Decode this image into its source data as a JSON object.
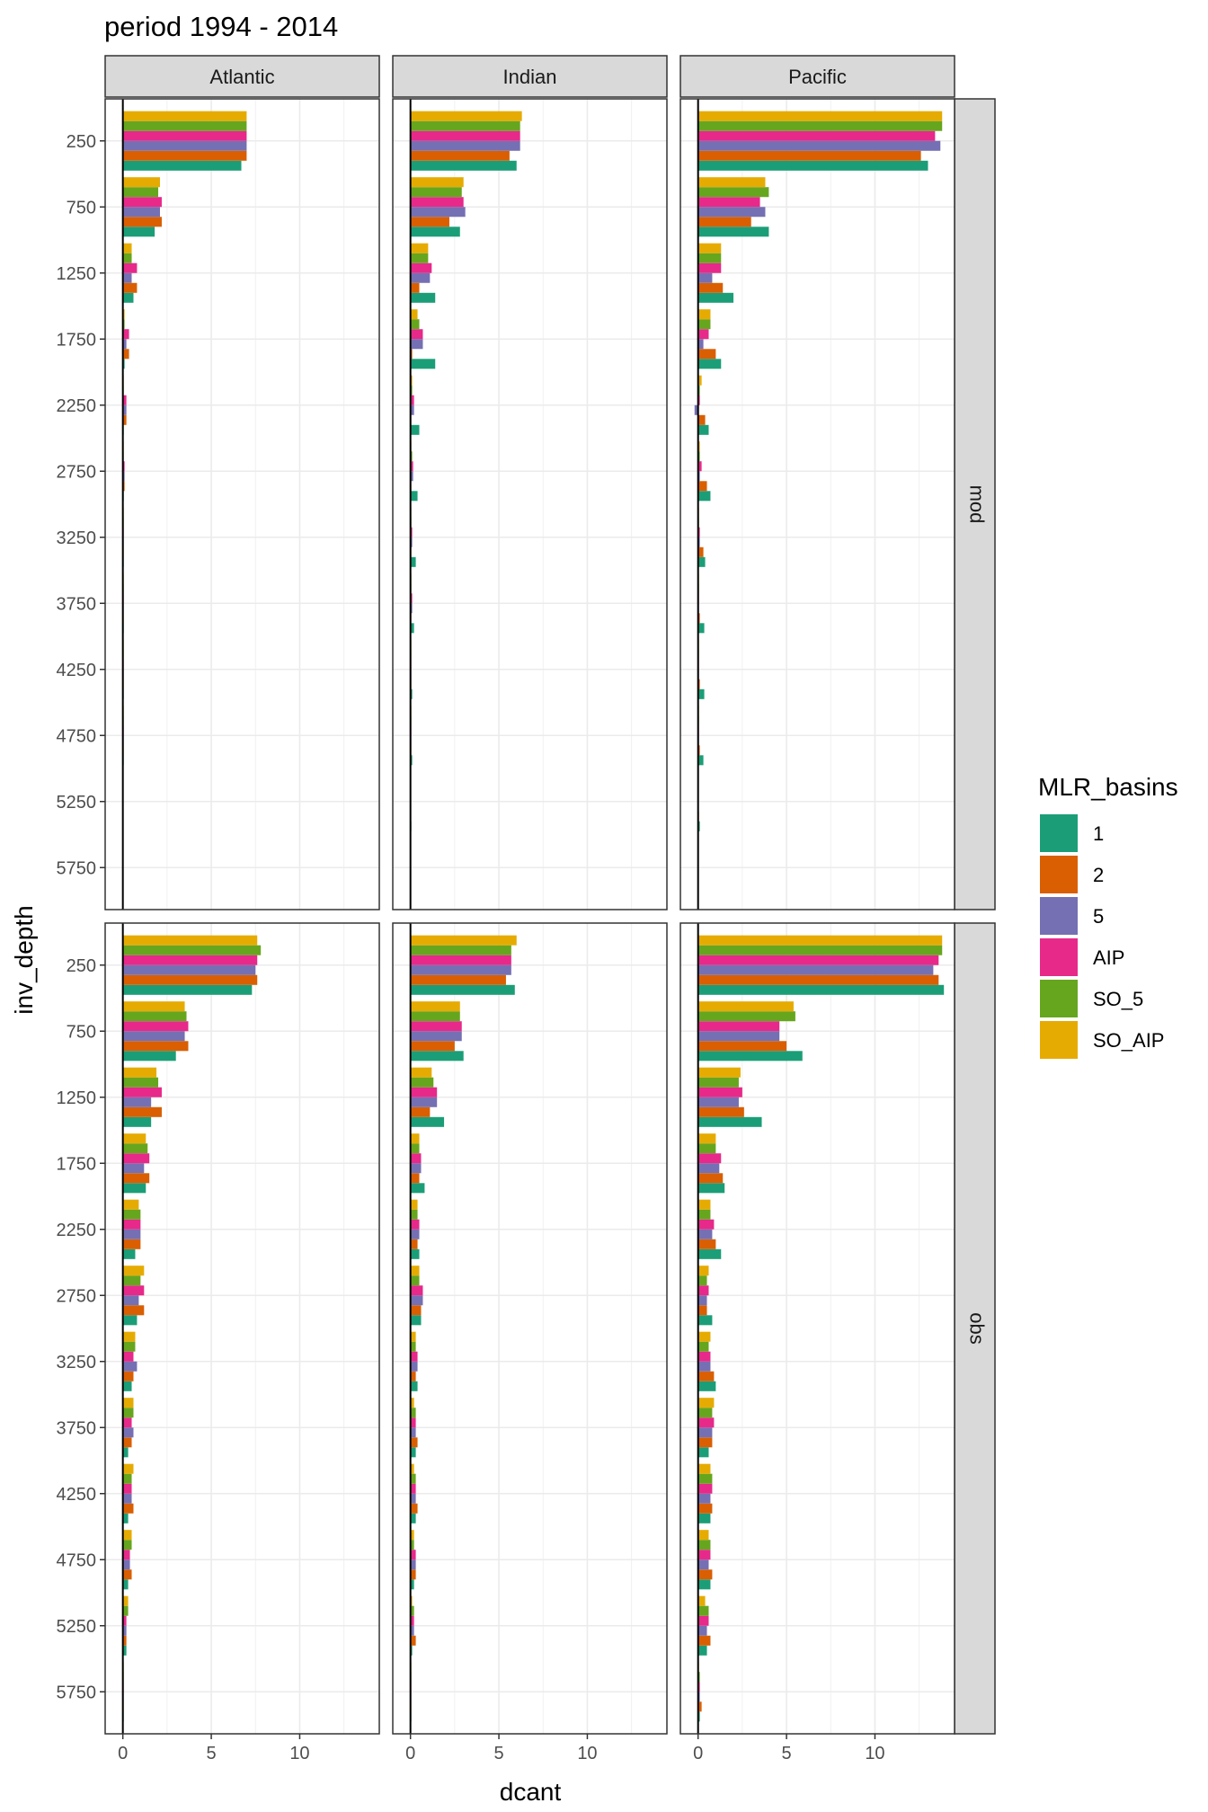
{
  "chart_data": {
    "type": "bar",
    "orientation": "horizontal",
    "title": "period 1994 - 2014",
    "xlabel": "dcant",
    "ylabel": "inv_depth",
    "xlim": [
      -1,
      14.5
    ],
    "x_ticks": [
      0,
      5,
      10
    ],
    "y_ticks": [
      250,
      750,
      1250,
      1750,
      2250,
      2750,
      3250,
      3750,
      4250,
      4750,
      5250,
      5750
    ],
    "facet_cols": [
      "Atlantic",
      "Indian",
      "Pacific"
    ],
    "facet_rows": [
      "mod",
      "obs"
    ],
    "legend_title": "MLR_basins",
    "legend_position": "right",
    "grid": true,
    "series": [
      {
        "name": "1",
        "color": "#1b9e77"
      },
      {
        "name": "2",
        "color": "#d95f02"
      },
      {
        "name": "5",
        "color": "#7570b3"
      },
      {
        "name": "AIP",
        "color": "#e7298a"
      },
      {
        "name": "SO_5",
        "color": "#66a61e"
      },
      {
        "name": "SO_AIP",
        "color": "#e6ab02"
      }
    ],
    "panels": [
      {
        "basin": "Atlantic",
        "data_source": "mod",
        "values": [
          [
            6.7,
            7.0,
            7.0,
            7.0,
            7.0,
            7.0
          ],
          [
            1.8,
            2.2,
            2.1,
            2.2,
            2.0,
            2.1
          ],
          [
            0.6,
            0.8,
            0.5,
            0.8,
            0.5,
            0.5
          ],
          [
            0.1,
            0.35,
            0.2,
            0.35,
            0.1,
            0.1
          ],
          [
            0.05,
            0.2,
            0.2,
            0.2,
            0.05,
            0.05
          ],
          [
            0.05,
            0.1,
            0.1,
            0.1,
            0.05,
            0.05
          ],
          [
            0.05,
            0.05,
            0.05,
            0.05,
            0.05,
            0.05
          ],
          [
            0.05,
            0.05,
            0.05,
            0.05,
            0.05,
            0.05
          ],
          [
            0.05,
            0.05,
            0.05,
            0.05,
            0.05,
            0.05
          ],
          [
            0.05,
            0.05,
            0.05,
            0.05,
            0.05,
            0.05
          ],
          [
            0.02,
            0.02,
            0.02,
            0.02,
            0.02,
            0.02
          ],
          [
            0.0,
            0.0,
            0.0,
            0.0,
            0.0,
            0.0
          ]
        ]
      },
      {
        "basin": "Indian",
        "data_source": "mod",
        "values": [
          [
            6.0,
            5.6,
            6.2,
            6.2,
            6.2,
            6.3
          ],
          [
            2.8,
            2.2,
            3.1,
            3.0,
            2.9,
            3.0
          ],
          [
            1.4,
            0.5,
            1.1,
            1.2,
            1.0,
            1.0
          ],
          [
            1.4,
            0.1,
            0.7,
            0.7,
            0.5,
            0.4
          ],
          [
            0.5,
            0.05,
            0.2,
            0.2,
            0.1,
            0.1
          ],
          [
            0.4,
            0.05,
            0.15,
            0.15,
            0.1,
            0.05
          ],
          [
            0.3,
            0.05,
            0.1,
            0.1,
            0.05,
            0.05
          ],
          [
            0.2,
            0.05,
            0.1,
            0.1,
            0.05,
            0.05
          ],
          [
            0.1,
            0.05,
            0.05,
            0.05,
            0.05,
            0.05
          ],
          [
            0.1,
            0.05,
            0.05,
            0.05,
            0.05,
            0.05
          ],
          [
            0.05,
            0.02,
            0.02,
            0.02,
            0.02,
            0.02
          ],
          [
            0.0,
            0.0,
            0.0,
            0.0,
            0.0,
            0.0
          ]
        ]
      },
      {
        "basin": "Pacific",
        "data_source": "mod",
        "values": [
          [
            13.0,
            12.6,
            13.7,
            13.4,
            13.8,
            13.8
          ],
          [
            4.0,
            3.0,
            3.8,
            3.5,
            4.0,
            3.8
          ],
          [
            2.0,
            1.4,
            0.8,
            1.3,
            1.3,
            1.3
          ],
          [
            1.3,
            1.0,
            0.3,
            0.6,
            0.7,
            0.7
          ],
          [
            0.6,
            0.4,
            -0.2,
            0.1,
            0.1,
            0.2
          ],
          [
            0.7,
            0.5,
            0.1,
            0.2,
            0.1,
            0.1
          ],
          [
            0.4,
            0.3,
            0.1,
            0.1,
            0.05,
            0.05
          ],
          [
            0.35,
            0.1,
            0.05,
            0.05,
            0.05,
            0.05
          ],
          [
            0.35,
            0.1,
            0.05,
            0.05,
            0.05,
            0.05
          ],
          [
            0.3,
            0.1,
            0.05,
            0.05,
            0.05,
            0.05
          ],
          [
            0.1,
            0.05,
            0.02,
            0.02,
            0.02,
            0.02
          ],
          [
            0.0,
            0.0,
            0.0,
            0.0,
            0.0,
            0.0
          ]
        ]
      },
      {
        "basin": "Atlantic",
        "data_source": "obs",
        "values": [
          [
            7.3,
            7.6,
            7.5,
            7.6,
            7.8,
            7.6
          ],
          [
            3.0,
            3.7,
            3.5,
            3.7,
            3.6,
            3.5
          ],
          [
            1.6,
            2.2,
            1.6,
            2.2,
            2.0,
            1.9
          ],
          [
            1.3,
            1.5,
            1.2,
            1.5,
            1.4,
            1.3
          ],
          [
            0.7,
            1.0,
            1.0,
            1.0,
            1.0,
            0.9
          ],
          [
            0.8,
            1.2,
            0.9,
            1.2,
            1.0,
            1.2
          ],
          [
            0.5,
            0.6,
            0.8,
            0.6,
            0.7,
            0.7
          ],
          [
            0.3,
            0.5,
            0.6,
            0.5,
            0.6,
            0.6
          ],
          [
            0.3,
            0.6,
            0.5,
            0.5,
            0.5,
            0.6
          ],
          [
            0.3,
            0.5,
            0.4,
            0.4,
            0.5,
            0.5
          ],
          [
            0.2,
            0.2,
            0.2,
            0.2,
            0.3,
            0.3
          ],
          [
            0.05,
            0.05,
            0.05,
            0.05,
            0.05,
            0.05
          ]
        ]
      },
      {
        "basin": "Indian",
        "data_source": "obs",
        "values": [
          [
            5.9,
            5.4,
            5.7,
            5.7,
            5.7,
            6.0
          ],
          [
            3.0,
            2.5,
            2.9,
            2.9,
            2.8,
            2.8
          ],
          [
            1.9,
            1.1,
            1.5,
            1.5,
            1.3,
            1.2
          ],
          [
            0.8,
            0.5,
            0.6,
            0.6,
            0.5,
            0.5
          ],
          [
            0.5,
            0.4,
            0.5,
            0.5,
            0.4,
            0.4
          ],
          [
            0.6,
            0.6,
            0.7,
            0.7,
            0.5,
            0.5
          ],
          [
            0.4,
            0.3,
            0.4,
            0.4,
            0.3,
            0.3
          ],
          [
            0.3,
            0.4,
            0.3,
            0.3,
            0.3,
            0.2
          ],
          [
            0.3,
            0.4,
            0.3,
            0.3,
            0.3,
            0.2
          ],
          [
            0.2,
            0.3,
            0.3,
            0.3,
            0.2,
            0.2
          ],
          [
            0.1,
            0.3,
            0.2,
            0.2,
            0.2,
            0.1
          ],
          [
            0.05,
            0.05,
            0.05,
            0.05,
            0.05,
            0.05
          ]
        ]
      },
      {
        "basin": "Pacific",
        "data_source": "obs",
        "values": [
          [
            13.9,
            13.6,
            13.3,
            13.6,
            13.8,
            13.8
          ],
          [
            5.9,
            5.0,
            4.6,
            4.6,
            5.5,
            5.4
          ],
          [
            3.6,
            2.6,
            2.3,
            2.5,
            2.3,
            2.4
          ],
          [
            1.5,
            1.4,
            1.2,
            1.3,
            1.0,
            1.0
          ],
          [
            1.3,
            1.0,
            0.8,
            0.9,
            0.7,
            0.7
          ],
          [
            0.8,
            0.5,
            0.5,
            0.6,
            0.5,
            0.6
          ],
          [
            1.0,
            0.9,
            0.7,
            0.7,
            0.6,
            0.7
          ],
          [
            0.6,
            0.8,
            0.8,
            0.9,
            0.8,
            0.9
          ],
          [
            0.7,
            0.8,
            0.7,
            0.8,
            0.8,
            0.7
          ],
          [
            0.7,
            0.8,
            0.6,
            0.7,
            0.7,
            0.6
          ],
          [
            0.5,
            0.7,
            0.5,
            0.6,
            0.6,
            0.4
          ],
          [
            0.1,
            0.2,
            0.1,
            0.1,
            0.1,
            0.05
          ]
        ]
      }
    ]
  }
}
